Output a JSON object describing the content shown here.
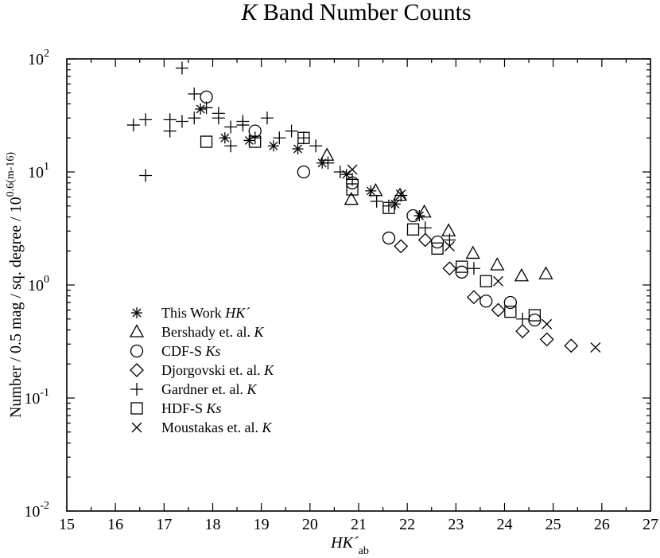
{
  "chart_data": {
    "type": "scatter",
    "title_italic": "K",
    "title_rest": " Band Number Counts",
    "xlabel_main": "HK´",
    "xlabel_sub": "ab",
    "ylabel_main": "Number / 0.5 mag / sq. degree / 10",
    "ylabel_sup": "0.6(m-16)",
    "xlim": [
      15,
      27
    ],
    "ylim": [
      0.01,
      100
    ],
    "yscale": "log",
    "grid": false,
    "legend_position": "lower-left",
    "xticks": [
      "15",
      "16",
      "17",
      "18",
      "19",
      "20",
      "21",
      "22",
      "23",
      "24",
      "25",
      "26",
      "27"
    ],
    "yticks": [
      {
        "base": "10",
        "exp": "2",
        "value": 100
      },
      {
        "base": "10",
        "exp": "1",
        "value": 10
      },
      {
        "base": "10",
        "exp": "0",
        "value": 1
      },
      {
        "base": "10",
        "exp": "-1",
        "value": 0.1
      },
      {
        "base": "10",
        "exp": "-2",
        "value": 0.01
      }
    ],
    "series": [
      {
        "name": "This Work",
        "name_suffix": "HK´",
        "marker": "asterisk",
        "x": [
          17.75,
          18.25,
          18.75,
          19.25,
          19.75,
          20.25,
          20.75,
          21.25,
          21.75,
          22.25
        ],
        "y": [
          36,
          20,
          19,
          17,
          16,
          12,
          9.5,
          6.8,
          5.2,
          4.1
        ]
      },
      {
        "name": "Bershady et. al.",
        "name_suffix": "K",
        "marker": "triangle",
        "x": [
          20.35,
          20.85,
          21.35,
          21.85,
          22.35,
          22.85,
          23.35,
          23.85,
          24.35,
          24.85
        ],
        "y": [
          14,
          5.7,
          6.8,
          6.2,
          4.4,
          3.0,
          1.9,
          1.5,
          1.2,
          1.25
        ]
      },
      {
        "name": "CDF-S",
        "name_suffix": "Ks",
        "marker": "circle",
        "x": [
          17.87,
          18.87,
          19.87,
          20.87,
          21.62,
          22.12,
          22.62,
          23.12,
          23.62,
          24.12,
          24.62
        ],
        "y": [
          46,
          23,
          10,
          8.0,
          2.6,
          4.1,
          2.4,
          1.3,
          0.72,
          0.7,
          0.49
        ]
      },
      {
        "name": "Djorgovski et. al.",
        "name_suffix": "K",
        "marker": "diamond",
        "x": [
          21.87,
          22.37,
          22.87,
          23.37,
          23.87,
          24.37,
          24.87,
          25.37
        ],
        "y": [
          2.2,
          2.5,
          1.4,
          0.78,
          0.6,
          0.39,
          0.33,
          0.29
        ]
      },
      {
        "name": "Gardner et. al.",
        "name_suffix": "K",
        "marker": "plus",
        "x": [
          16.37,
          16.62,
          16.62,
          17.12,
          17.12,
          17.37,
          17.37,
          17.62,
          17.62,
          17.87,
          18.12,
          18.12,
          18.37,
          18.37,
          18.62,
          18.62,
          18.87,
          19.12,
          19.37,
          19.62,
          19.87,
          20.12,
          20.37,
          20.62,
          20.87,
          21.37,
          21.62,
          21.87,
          22.37,
          22.87,
          23.37,
          24.37
        ],
        "y": [
          26,
          29,
          9.3,
          29,
          23,
          83,
          28,
          49,
          30,
          37,
          33,
          30,
          25,
          17,
          26,
          28,
          20,
          30,
          20,
          23,
          20,
          17,
          12,
          10,
          8.6,
          5.5,
          5.0,
          6.2,
          3.2,
          2.5,
          1.4,
          0.5
        ]
      },
      {
        "name": "HDF-S",
        "name_suffix": "Ks",
        "marker": "square",
        "x": [
          17.87,
          18.87,
          19.87,
          20.87,
          21.62,
          22.12,
          22.62,
          23.12,
          23.62,
          24.12,
          24.62
        ],
        "y": [
          18.5,
          18.5,
          20,
          7.0,
          4.8,
          3.1,
          2.1,
          1.45,
          1.08,
          0.58,
          0.54
        ]
      },
      {
        "name": "Moustakas et. al.",
        "name_suffix": "K",
        "marker": "cross",
        "x": [
          20.87,
          21.87,
          22.87,
          23.87,
          24.87,
          25.87
        ],
        "y": [
          10.5,
          6.3,
          2.2,
          1.08,
          0.45,
          0.28
        ]
      }
    ]
  }
}
